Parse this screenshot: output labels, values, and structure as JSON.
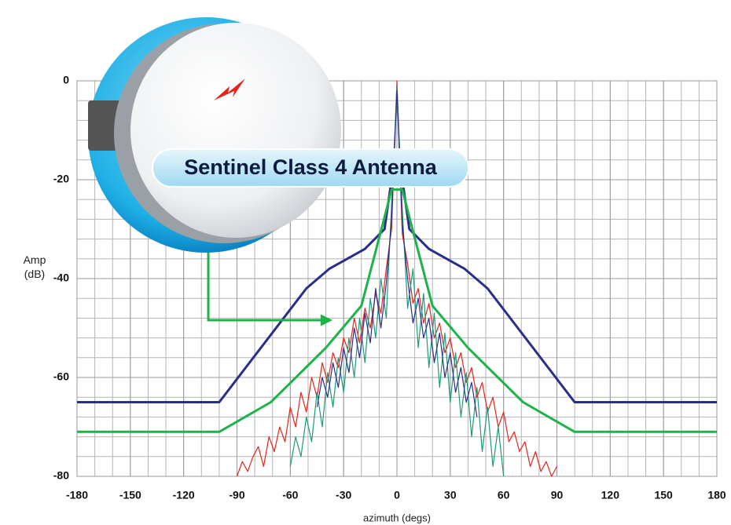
{
  "chart_data": {
    "type": "line",
    "title": "Sentinel Class 4 Antenna",
    "xlabel": "azimuth (degs)",
    "ylabel": "Amp (dB)",
    "xlim": [
      -180,
      180
    ],
    "ylim": [
      -80,
      0
    ],
    "xticks": [
      -180,
      -150,
      -120,
      -90,
      -60,
      -30,
      0,
      30,
      60,
      90,
      120,
      150,
      180
    ],
    "yticks": [
      0,
      -20,
      -40,
      -60,
      -80
    ],
    "grid": true,
    "minor_grid_step": {
      "x": 10,
      "y": 4
    },
    "series": [
      {
        "color": "#e8231c",
        "width": 1.2,
        "x": [
          -90,
          -87,
          -84,
          -81,
          -78,
          -75,
          -72,
          -69,
          -66,
          -63,
          -60,
          -57,
          -54,
          -51,
          -48,
          -45,
          -42,
          -39,
          -36,
          -33,
          -30,
          -27,
          -24,
          -21,
          -18,
          -15,
          -12,
          -9,
          -6,
          -3,
          0,
          3,
          6,
          9,
          12,
          15,
          18,
          21,
          24,
          27,
          30,
          33,
          36,
          39,
          42,
          45,
          48,
          51,
          54,
          57,
          60,
          63,
          66,
          69,
          72,
          75,
          78,
          81,
          84,
          87,
          90
        ],
        "values": [
          -80,
          -77,
          -79,
          -76,
          -74,
          -78,
          -72,
          -75,
          -70,
          -73,
          -66,
          -70,
          -63,
          -67,
          -60,
          -64,
          -57,
          -61,
          -55,
          -58,
          -52,
          -55,
          -48,
          -53,
          -46,
          -50,
          -43,
          -47,
          -38,
          -30,
          0,
          -31,
          -37,
          -45,
          -42,
          -49,
          -45,
          -52,
          -49,
          -55,
          -52,
          -58,
          -55,
          -61,
          -58,
          -64,
          -61,
          -67,
          -64,
          -70,
          -67,
          -73,
          -71,
          -75,
          -73,
          -78,
          -75,
          -79,
          -77,
          -80,
          -78
        ]
      },
      {
        "color": "#1e9a7a",
        "width": 1.2,
        "x": [
          -60,
          -57,
          -54,
          -51,
          -48,
          -45,
          -42,
          -39,
          -36,
          -33,
          -30,
          -27,
          -24,
          -21,
          -18,
          -15,
          -12,
          -9,
          -6,
          -3,
          0,
          3,
          6,
          9,
          12,
          15,
          18,
          21,
          24,
          27,
          30,
          33,
          36,
          39,
          42,
          45,
          48,
          51,
          54,
          57,
          60
        ],
        "values": [
          -78,
          -72,
          -76,
          -68,
          -73,
          -63,
          -70,
          -59,
          -66,
          -56,
          -63,
          -52,
          -60,
          -48,
          -57,
          -44,
          -52,
          -40,
          -48,
          -25,
          -1,
          -26,
          -46,
          -38,
          -54,
          -43,
          -58,
          -47,
          -62,
          -51,
          -65,
          -55,
          -68,
          -59,
          -72,
          -62,
          -75,
          -66,
          -78,
          -70,
          -80
        ]
      },
      {
        "color": "#2a2e8a",
        "width": 1.2,
        "x": [
          -45,
          -42,
          -39,
          -36,
          -33,
          -30,
          -27,
          -24,
          -21,
          -18,
          -15,
          -12,
          -9,
          -6,
          -3,
          0,
          3,
          6,
          9,
          12,
          15,
          18,
          21,
          24,
          27,
          30,
          33,
          36,
          39,
          42,
          45
        ],
        "values": [
          -66,
          -60,
          -64,
          -57,
          -62,
          -54,
          -59,
          -50,
          -56,
          -47,
          -53,
          -42,
          -50,
          -41,
          -28,
          -2,
          -29,
          -40,
          -49,
          -44,
          -52,
          -48,
          -57,
          -51,
          -60,
          -55,
          -63,
          -58,
          -65,
          -61,
          -68
        ]
      },
      {
        "color": "#2a2e8a",
        "width": 3,
        "x": [
          -180,
          -100,
          -51,
          -38,
          -18,
          -7,
          -3,
          3,
          7,
          18,
          38,
          51,
          100,
          180
        ],
        "values": [
          -65,
          -65,
          -42,
          -38,
          -34,
          -30,
          -20,
          -20,
          -30,
          -34,
          -38,
          -42,
          -65,
          -65
        ]
      },
      {
        "color": "#1db34a",
        "width": 3,
        "x": [
          -180,
          -100,
          -71,
          -40,
          -20,
          -8,
          -3,
          3,
          8,
          20,
          40,
          71,
          100,
          180
        ],
        "values": [
          -71,
          -71,
          -65,
          -54,
          -45.5,
          -29,
          -22,
          -22,
          -29,
          -45.5,
          -54,
          -65,
          -71,
          -71
        ]
      }
    ]
  }
}
